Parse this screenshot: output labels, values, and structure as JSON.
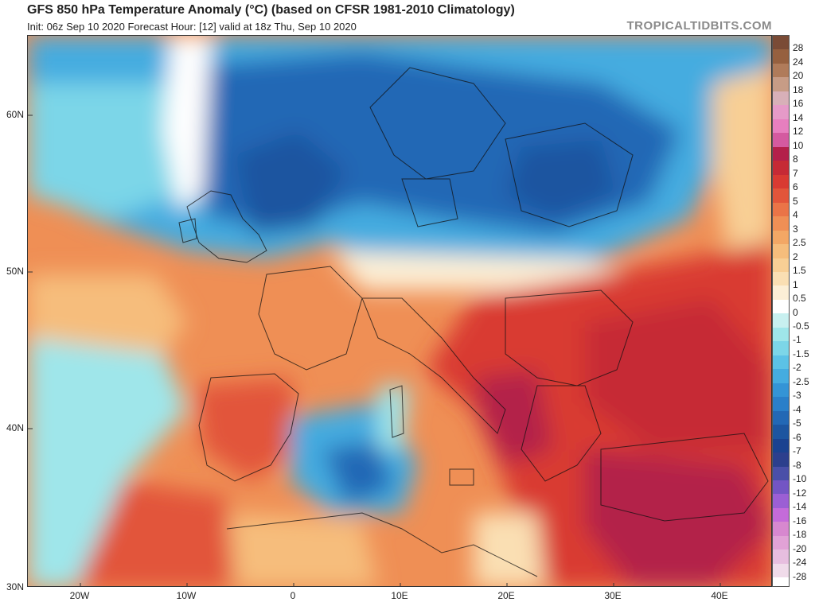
{
  "header": {
    "title": "GFS 850 hPa Temperature Anomaly (°C) (based on CFSR 1981-2010 Climatology)",
    "subtitle": "Init: 06z Sep 10 2020   Forecast Hour: [12]   valid at 18z Thu, Sep 10 2020",
    "brand": "TROPICALTIDBITS.COM"
  },
  "axes": {
    "lat_labels": [
      "60N",
      "50N",
      "40N",
      "30N"
    ],
    "lon_labels": [
      "20W",
      "10W",
      "0",
      "10E",
      "20E",
      "30E",
      "40E"
    ]
  },
  "colorbar": {
    "labels": [
      "28",
      "24",
      "20",
      "18",
      "16",
      "14",
      "12",
      "10",
      "8",
      "7",
      "6",
      "5",
      "4",
      "3",
      "2.5",
      "2",
      "1.5",
      "1",
      "0.5",
      "0",
      "-0.5",
      "-1",
      "-1.5",
      "-2",
      "-2.5",
      "-3",
      "-4",
      "-5",
      "-6",
      "-7",
      "-8",
      "-10",
      "-12",
      "-14",
      "-16",
      "-18",
      "-20",
      "-24",
      "-28"
    ],
    "colors": [
      "#7a4b36",
      "#96603f",
      "#b07b5a",
      "#c79c86",
      "#d8b0b8",
      "#e69ac8",
      "#e77fbf",
      "#d45aa0",
      "#b3204a",
      "#c62a35",
      "#d93a32",
      "#e2553a",
      "#ea7447",
      "#ef8f55",
      "#f3a765",
      "#f6bd7c",
      "#f8cf95",
      "#fadfb3",
      "#fcefd6",
      "#ffffff",
      "#c8f0f0",
      "#9fe6ea",
      "#7cd6e8",
      "#5cc2e6",
      "#45ace0",
      "#3494d6",
      "#2a7fc9",
      "#2368b5",
      "#1d55a0",
      "#1a4290",
      "#2c3f8d",
      "#4a4fa8",
      "#7355c4",
      "#9b5fd4",
      "#c46bd9",
      "#d788cf",
      "#e1a2d6",
      "#e7bedf",
      "#f0dbea"
    ]
  },
  "map": {
    "background_colors": {
      "warm": "#ef8f55",
      "hot": "#c62a35",
      "cold": "#2368b5",
      "cool": "#7cd6e8",
      "neutral": "#fcefd6"
    }
  }
}
